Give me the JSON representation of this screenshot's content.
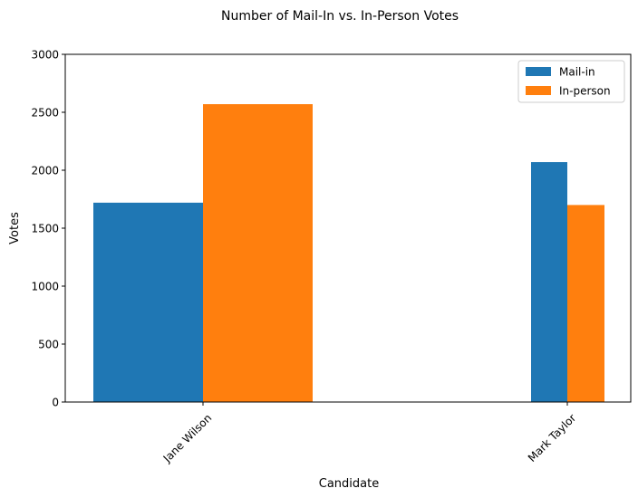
{
  "chart_data": {
    "type": "bar",
    "title": "Number of Mail-In vs. In-Person Votes",
    "xlabel": "Candidate",
    "ylabel": "Votes",
    "categories": [
      "Jane Wilson",
      "Mark Taylor"
    ],
    "series": [
      {
        "name": "Mail-in",
        "values": [
          1720,
          2070
        ],
        "color": "#1f77b4"
      },
      {
        "name": "In-person",
        "values": [
          2570,
          1700
        ],
        "color": "#ff7f0e"
      }
    ],
    "ylim": [
      0,
      3000
    ],
    "yticks": [
      0,
      500,
      1000,
      1500,
      2000,
      2500,
      3000
    ],
    "legend": "top-right",
    "grid": false,
    "xtick_rotation": 45
  }
}
